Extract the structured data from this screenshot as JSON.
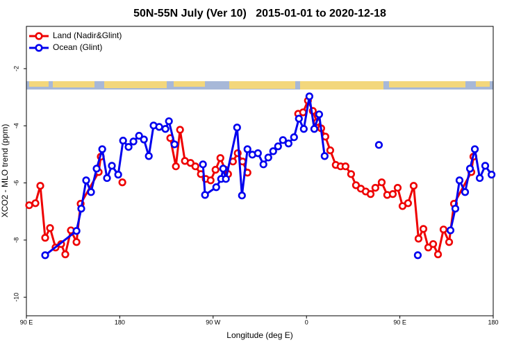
{
  "chart_data": {
    "type": "line",
    "title": "50N-55N July (Ver 10)   2015-01-01 to 2020-12-18",
    "x_label": "Longitude (deg E)",
    "y_label": "XCO2 - MLO trend (ppm)",
    "xlim": [
      90,
      540
    ],
    "ylim": [
      -10.65,
      -0.52
    ],
    "xticks": [
      {
        "value": 90,
        "label": "90 E"
      },
      {
        "value": 180,
        "label": "180"
      },
      {
        "value": 270,
        "label": "90 W"
      },
      {
        "value": 360,
        "label": "0"
      },
      {
        "value": 450,
        "label": "90 E"
      },
      {
        "value": 540,
        "label": "180"
      }
    ],
    "yticks": [
      -2,
      -4,
      -6,
      -8,
      -10
    ],
    "legend": "top-left",
    "series": [
      {
        "name": "Land (Nadir&Glint)",
        "color": "#ee0000",
        "x": [
          92.7,
          98.7,
          103.4,
          108.1,
          112.8,
          118.1,
          123.5,
          127.5,
          132.9,
          138.3,
          142.3,
          159.7,
          161.7,
          null,
          182.5,
          null,
          228.7,
          234.1,
          238.1,
          242.8,
          248.2,
          252.9,
          258.2,
          262.9,
          267.6,
          272.3,
          277.0,
          281.7,
          284.4,
          null,
          289.1,
          293.7,
          298.4,
          303.1,
          null,
          352.0,
          356.7,
          361.4,
          366.1,
          370.1,
          374.2,
          378.2,
          382.9,
          388.2,
          392.9,
          397.6,
          403.0,
          407.7,
          412.4,
          417.1,
          421.8,
          426.4,
          432.5,
          437.8,
          443.2,
          447.9,
          452.6,
          457.9,
          463.3,
          468.0,
          472.7,
          477.4,
          482.1,
          486.8,
          492.1,
          497.5,
          502.2,
          518.9,
          520.9
        ],
        "values": [
          -6.78,
          -6.71,
          -6.1,
          -7.92,
          -7.58,
          -8.26,
          -8.14,
          -8.5,
          -7.66,
          -8.07,
          -6.73,
          -5.62,
          -5.08,
          null,
          -5.98,
          null,
          -4.43,
          -5.42,
          -4.14,
          -5.23,
          -5.3,
          -5.42,
          -5.69,
          -5.86,
          -5.91,
          -5.54,
          -5.13,
          -5.54,
          -5.69,
          null,
          -5.25,
          -4.96,
          -5.25,
          -5.64,
          null,
          -3.58,
          -3.53,
          -3.12,
          -3.48,
          -3.87,
          -4.09,
          -4.38,
          -4.86,
          -5.37,
          -5.42,
          -5.42,
          -5.69,
          -6.08,
          -6.2,
          -6.3,
          -6.39,
          -6.17,
          -5.98,
          -6.42,
          -6.39,
          -6.17,
          -6.81,
          -6.71,
          -6.1,
          -7.95,
          -7.61,
          -8.26,
          -8.14,
          -8.5,
          -7.63,
          -8.07,
          -6.73,
          -5.62,
          -5.08
        ]
      },
      {
        "name": "Ocean (Glint)",
        "color": "#0000ee",
        "x": [
          108.1,
          138.3,
          142.9,
          147.6,
          152.3,
          157.7,
          163.1,
          167.7,
          172.4,
          178.5,
          183.2,
          188.5,
          193.2,
          198.6,
          203.3,
          208.0,
          212.6,
          218.0,
          224.0,
          227.4,
          232.8,
          null,
          260.2,
          262.2,
          273.0,
          277.7,
          279.7,
          282.3,
          293.1,
          297.8,
          303.1,
          307.8,
          313.2,
          318.5,
          323.2,
          327.9,
          332.6,
          337.3,
          342.7,
          348.0,
          352.7,
          357.4,
          362.8,
          367.5,
          372.2,
          377.5,
          null,
          429.8,
          null,
          467.3,
          null,
          498.8,
          503.5,
          507.5,
          512.9,
          517.6,
          522.3,
          527.0,
          532.3,
          538.4
        ],
        "values": [
          -8.53,
          -7.68,
          -6.9,
          -5.91,
          -6.32,
          -5.5,
          -4.82,
          -5.83,
          -5.4,
          -5.71,
          -4.52,
          -4.74,
          -4.55,
          -4.35,
          -4.48,
          -5.06,
          -3.99,
          -4.04,
          -4.11,
          -3.84,
          -4.65,
          null,
          -5.35,
          -6.42,
          -6.15,
          -5.86,
          -5.5,
          -5.86,
          -4.06,
          -6.44,
          -4.82,
          -5.01,
          -4.96,
          -5.35,
          -5.11,
          -4.89,
          -4.72,
          -4.5,
          -4.62,
          -4.4,
          -3.75,
          -4.11,
          -2.97,
          -4.11,
          -3.6,
          -5.06,
          null,
          -4.67,
          null,
          -8.53,
          null,
          -7.66,
          -6.9,
          -5.91,
          -6.32,
          -5.5,
          -4.82,
          -5.83,
          -5.4,
          -5.71
        ]
      }
    ]
  }
}
